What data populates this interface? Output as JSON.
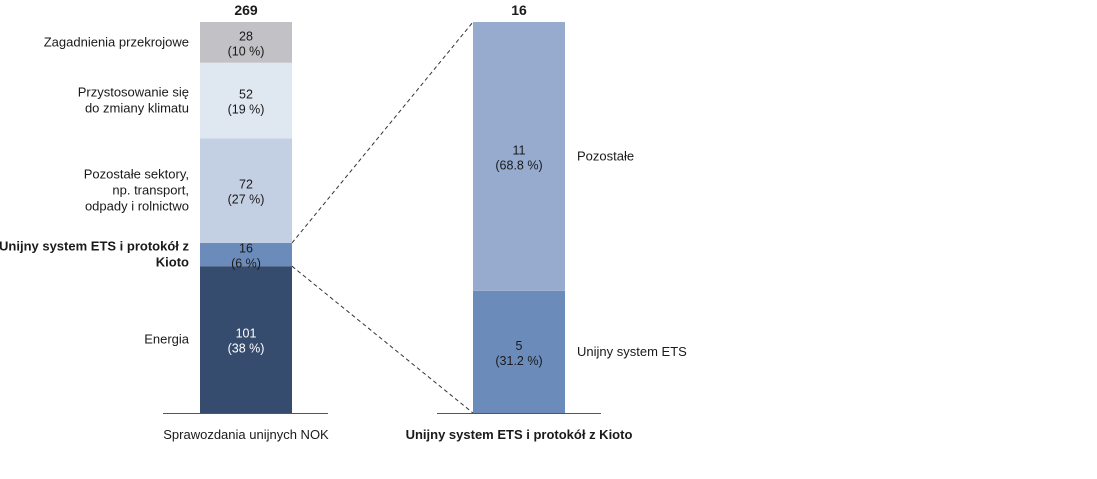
{
  "chart_data": {
    "type": "bar",
    "stacked": true,
    "unit_note": "",
    "bars": [
      {
        "axis_label": "Sprawozdania unijnych NOK",
        "total": "269",
        "segments": [
          {
            "name": "Energia",
            "label_lines": [
              "Energia"
            ],
            "value": 101,
            "percent": "(38 %)",
            "color": "#364c6e",
            "text_color": "#ffffff",
            "label_bold": false
          },
          {
            "name": "Unijny system ETS i protokół z Kioto",
            "label_lines": [
              "Unijny system ETS i protokół z",
              "Kioto"
            ],
            "value": 16,
            "percent": "(6 %)",
            "color": "#6b8cbb",
            "text_color": "#1a1a1a",
            "label_bold": true
          },
          {
            "name": "Pozostałe sektory, np. transport, odpady i rolnictwo",
            "label_lines": [
              "Pozostałe sektory,",
              "np. transport,",
              "odpady i rolnictwo"
            ],
            "value": 72,
            "percent": "(27 %)",
            "color": "#c3d0e3",
            "text_color": "#1a1a1a",
            "label_bold": false
          },
          {
            "name": "Przystosowanie się do zmiany klimatu",
            "label_lines": [
              "Przystosowanie się",
              "do zmiany klimatu"
            ],
            "value": 52,
            "percent": "(19 %)",
            "color": "#dfe7f1",
            "text_color": "#1a1a1a",
            "label_bold": false
          },
          {
            "name": "Zagadnienia przekrojowe",
            "label_lines": [
              "Zagadnienia przekrojowe"
            ],
            "value": 28,
            "percent": "(10 %)",
            "color": "#c1c1c6",
            "text_color": "#1a1a1a",
            "label_bold": false
          }
        ]
      },
      {
        "axis_label": "Unijny system ETS i protokół z Kioto",
        "total": "16",
        "segments": [
          {
            "name": "Unijny system ETS",
            "label_lines": [
              "Unijny system ETS"
            ],
            "value": 5,
            "percent": "(31.2 %)",
            "color": "#6b8cbb",
            "text_color": "#1a1a1a",
            "label_bold": false
          },
          {
            "name": "Pozostałe",
            "label_lines": [
              "Pozostałe"
            ],
            "value": 11,
            "percent": "(68.8 %)",
            "color": "#97abcf",
            "text_color": "#1a1a1a",
            "label_bold": false
          }
        ]
      }
    ],
    "connector": {
      "from_bar": 0,
      "segment_index": 1,
      "to_bar": 1,
      "style": "dashed"
    }
  }
}
